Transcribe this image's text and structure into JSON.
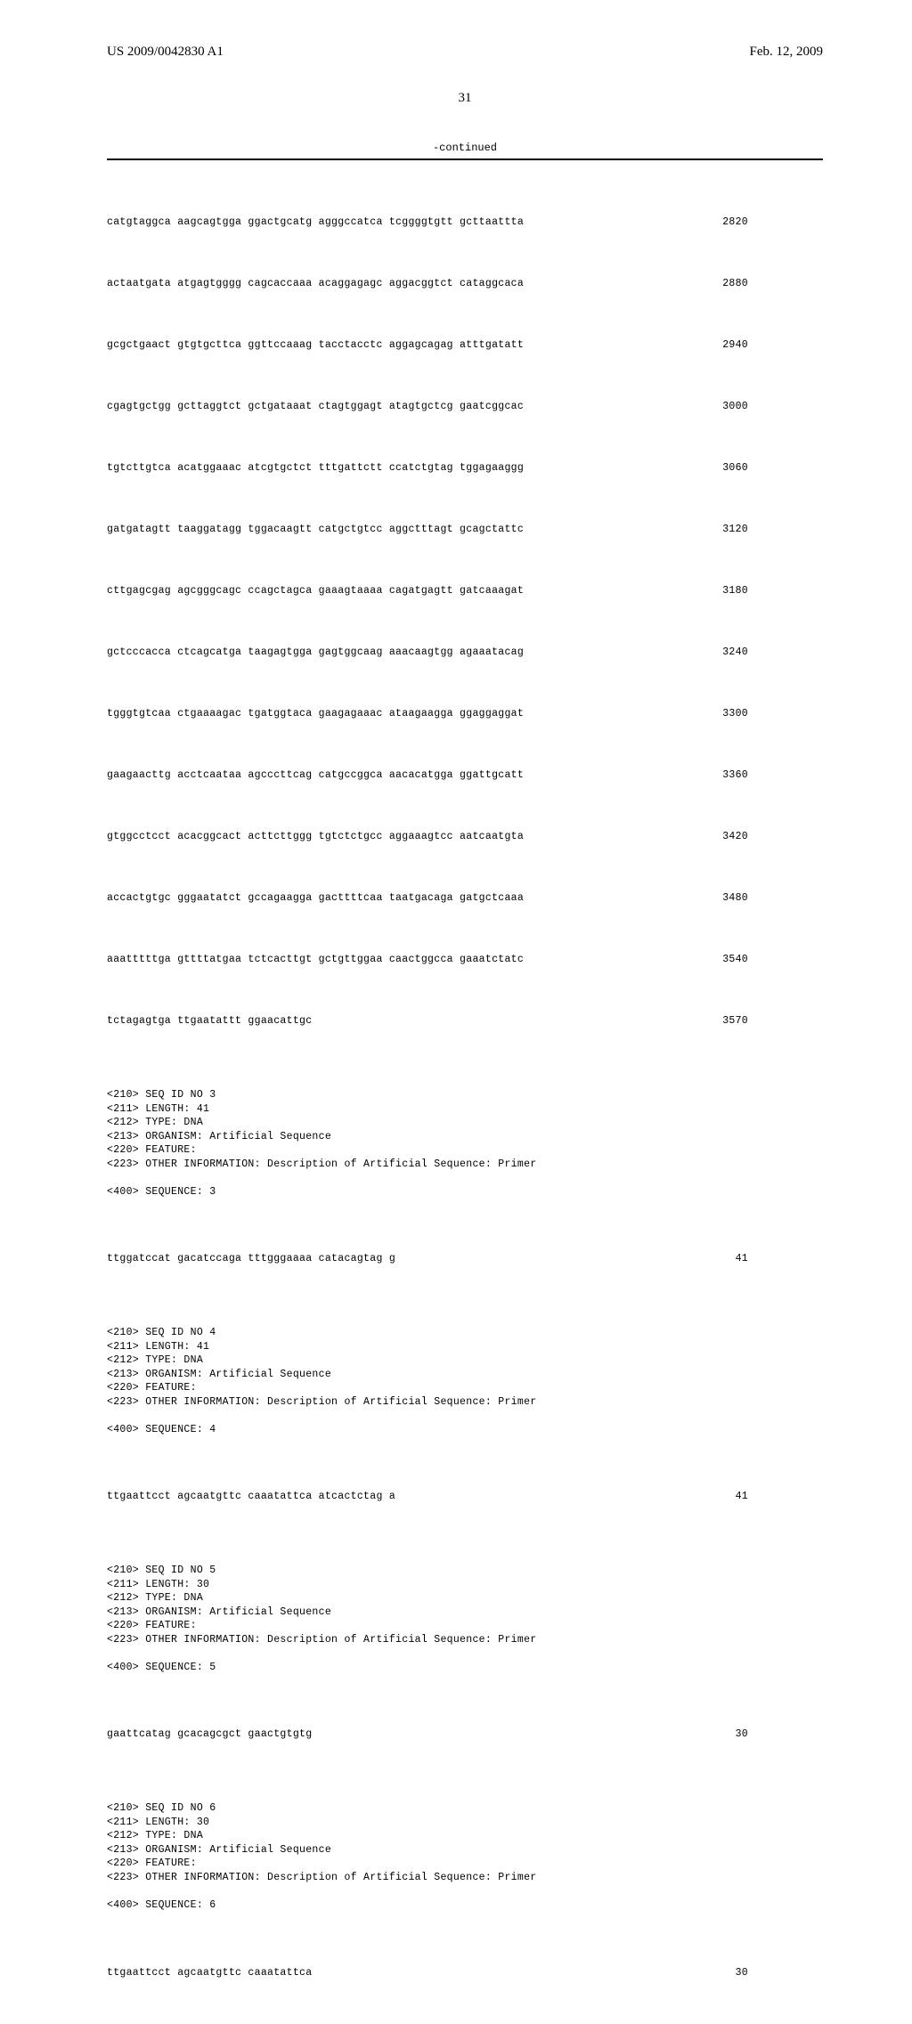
{
  "header": {
    "left": "US 2009/0042830 A1",
    "right": "Feb. 12, 2009"
  },
  "pageNumber": "31",
  "continuedLabel": "-continued",
  "seqBlock1": [
    {
      "text": "catgtaggca aagcagtgga ggactgcatg agggccatca tcggggtgtt gcttaattta",
      "num": "2820"
    },
    {
      "text": "actaatgata atgagtgggg cagcaccaaa acaggagagc aggacggtct cataggcaca",
      "num": "2880"
    },
    {
      "text": "gcgctgaact gtgtgcttca ggttccaaag tacctacctc aggagcagag atttgatatt",
      "num": "2940"
    },
    {
      "text": "cgagtgctgg gcttaggtct gctgataaat ctagtggagt atagtgctcg gaatcggcac",
      "num": "3000"
    },
    {
      "text": "tgtcttgtca acatggaaac atcgtgctct tttgattctt ccatctgtag tggagaaggg",
      "num": "3060"
    },
    {
      "text": "gatgatagtt taaggatagg tggacaagtt catgctgtcc aggctttagt gcagctattc",
      "num": "3120"
    },
    {
      "text": "cttgagcgag agcgggcagc ccagctagca gaaagtaaaa cagatgagtt gatcaaagat",
      "num": "3180"
    },
    {
      "text": "gctcccacca ctcagcatga taagagtgga gagtggcaag aaacaagtgg agaaatacag",
      "num": "3240"
    },
    {
      "text": "tgggtgtcaa ctgaaaagac tgatggtaca gaagagaaac ataagaagga ggaggaggat",
      "num": "3300"
    },
    {
      "text": "gaagaacttg acctcaataa agcccttcag catgccggca aacacatgga ggattgcatt",
      "num": "3360"
    },
    {
      "text": "gtggcctcct acacggcact acttcttggg tgtctctgcc aggaaagtcc aatcaatgta",
      "num": "3420"
    },
    {
      "text": "accactgtgc gggaatatct gccagaagga gacttttcaa taatgacaga gatgctcaaa",
      "num": "3480"
    },
    {
      "text": "aaatttttga gttttatgaa tctcacttgt gctgttggaa caactggcca gaaatctatc",
      "num": "3540"
    },
    {
      "text": "tctagagtga ttgaatattt ggaacattgc",
      "num": "3570"
    }
  ],
  "seq3": {
    "meta": "<210> SEQ ID NO 3\n<211> LENGTH: 41\n<212> TYPE: DNA\n<213> ORGANISM: Artificial Sequence\n<220> FEATURE:\n<223> OTHER INFORMATION: Description of Artificial Sequence: Primer\n\n<400> SEQUENCE: 3",
    "line": {
      "text": "ttggatccat gacatccaga tttgggaaaa catacagtag g",
      "num": "41"
    }
  },
  "seq4": {
    "meta": "<210> SEQ ID NO 4\n<211> LENGTH: 41\n<212> TYPE: DNA\n<213> ORGANISM: Artificial Sequence\n<220> FEATURE:\n<223> OTHER INFORMATION: Description of Artificial Sequence: Primer\n\n<400> SEQUENCE: 4",
    "line": {
      "text": "ttgaattcct agcaatgttc caaatattca atcactctag a",
      "num": "41"
    }
  },
  "seq5": {
    "meta": "<210> SEQ ID NO 5\n<211> LENGTH: 30\n<212> TYPE: DNA\n<213> ORGANISM: Artificial Sequence\n<220> FEATURE:\n<223> OTHER INFORMATION: Description of Artificial Sequence: Primer\n\n<400> SEQUENCE: 5",
    "line": {
      "text": "gaattcatag gcacagcgct gaactgtgtg",
      "num": "30"
    }
  },
  "seq6": {
    "meta": "<210> SEQ ID NO 6\n<211> LENGTH: 30\n<212> TYPE: DNA\n<213> ORGANISM: Artificial Sequence\n<220> FEATURE:\n<223> OTHER INFORMATION: Description of Artificial Sequence: Primer\n\n<400> SEQUENCE: 6",
    "line": {
      "text": "ttgaattcct agcaatgttc caaatattca",
      "num": "30"
    }
  }
}
